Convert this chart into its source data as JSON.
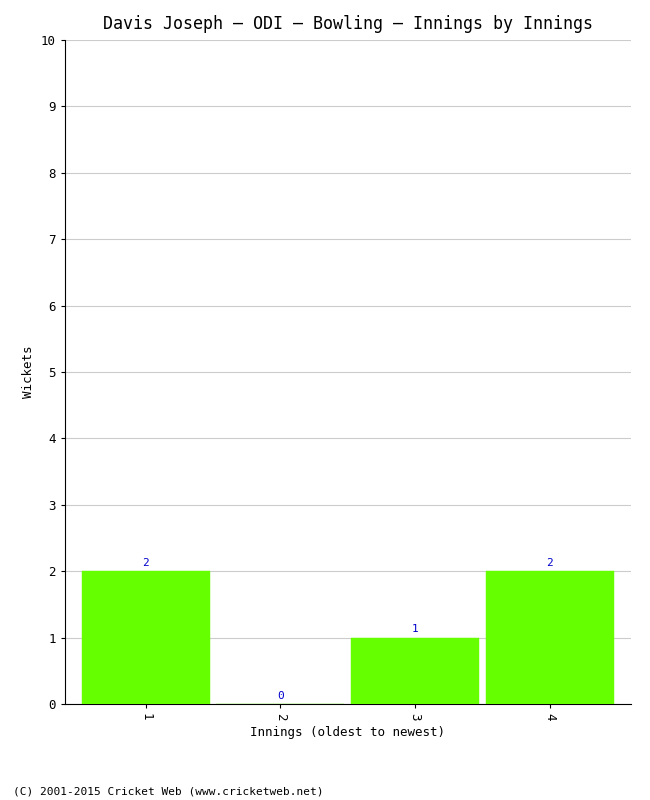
{
  "title": "Davis Joseph – ODI – Bowling – Innings by Innings",
  "xlabel": "Innings (oldest to newest)",
  "ylabel": "Wickets",
  "categories": [
    1,
    2,
    3,
    4
  ],
  "values": [
    2,
    0,
    1,
    2
  ],
  "bar_color": "#66ff00",
  "bar_edge_color": "#66ff00",
  "ylim": [
    0,
    10
  ],
  "yticks": [
    0,
    1,
    2,
    3,
    4,
    5,
    6,
    7,
    8,
    9,
    10
  ],
  "xticks": [
    1,
    2,
    3,
    4
  ],
  "label_color": "#0000cc",
  "label_fontsize": 8,
  "background_color": "#ffffff",
  "plot_bg_color": "#ffffff",
  "grid_color": "#cccccc",
  "title_fontsize": 12,
  "axis_label_fontsize": 9,
  "tick_fontsize": 9,
  "footer_text": "(C) 2001-2015 Cricket Web (www.cricketweb.net)",
  "footer_fontsize": 8
}
